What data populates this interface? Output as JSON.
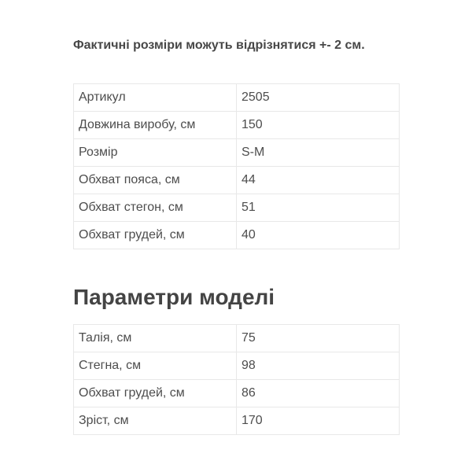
{
  "note": "Фактичні розміри можуть відрізнятися +- 2 см.",
  "product_table": [
    {
      "label": "Артикул",
      "value": "2505"
    },
    {
      "label": "Довжина виробу, см",
      "value": "150"
    },
    {
      "label": "Розмір",
      "value": "S-M"
    },
    {
      "label": "Обхват пояса, см",
      "value": "44"
    },
    {
      "label": "Обхват стегон, см",
      "value": "51"
    },
    {
      "label": "Обхват грудей, см",
      "value": "40"
    }
  ],
  "model_heading": "Параметри моделі",
  "model_table": [
    {
      "label": "Талія, см",
      "value": "75"
    },
    {
      "label": "Стегна, см",
      "value": "98"
    },
    {
      "label": "Обхват грудей, см",
      "value": "86"
    },
    {
      "label": "Зріст, см",
      "value": "170"
    }
  ]
}
